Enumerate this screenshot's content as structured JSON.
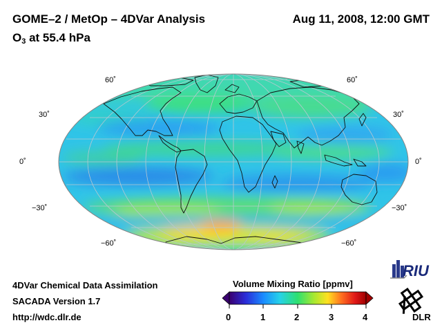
{
  "header": {
    "title": "GOME–2 / MetOp – 4DVar Analysis",
    "datetime": "Aug 11, 2008, 12:00 GMT",
    "subtitle_main": "O",
    "subtitle_sub": "3",
    "subtitle_rest": " at 55.4 hPa"
  },
  "map": {
    "projection": "Hammer-Aitoff (global)",
    "lat_labels_left": [
      "60˚",
      "30˚",
      "0˚",
      "−30˚",
      "−60˚"
    ],
    "lat_labels_right": [
      "60˚",
      "30˚",
      "0˚",
      "−30˚",
      "−60˚"
    ]
  },
  "colorbar": {
    "title": "Volume Mixing Ratio [ppmv]",
    "ticks": [
      "0",
      "1",
      "2",
      "3",
      "4"
    ],
    "range": [
      0,
      4
    ],
    "colors": [
      "#3a0070",
      "#2a2cd8",
      "#1a8cff",
      "#26d2e8",
      "#2ee070",
      "#a8e830",
      "#ffe020",
      "#ff7020",
      "#e01818",
      "#a00000"
    ]
  },
  "footer": {
    "line1": "4DVar Chemical Data Assimilation",
    "line2": "SACADA Version 1.7",
    "line3": "http://wdc.dlr.de"
  },
  "logos": {
    "riu": "RIU",
    "dlr": "DLR"
  }
}
